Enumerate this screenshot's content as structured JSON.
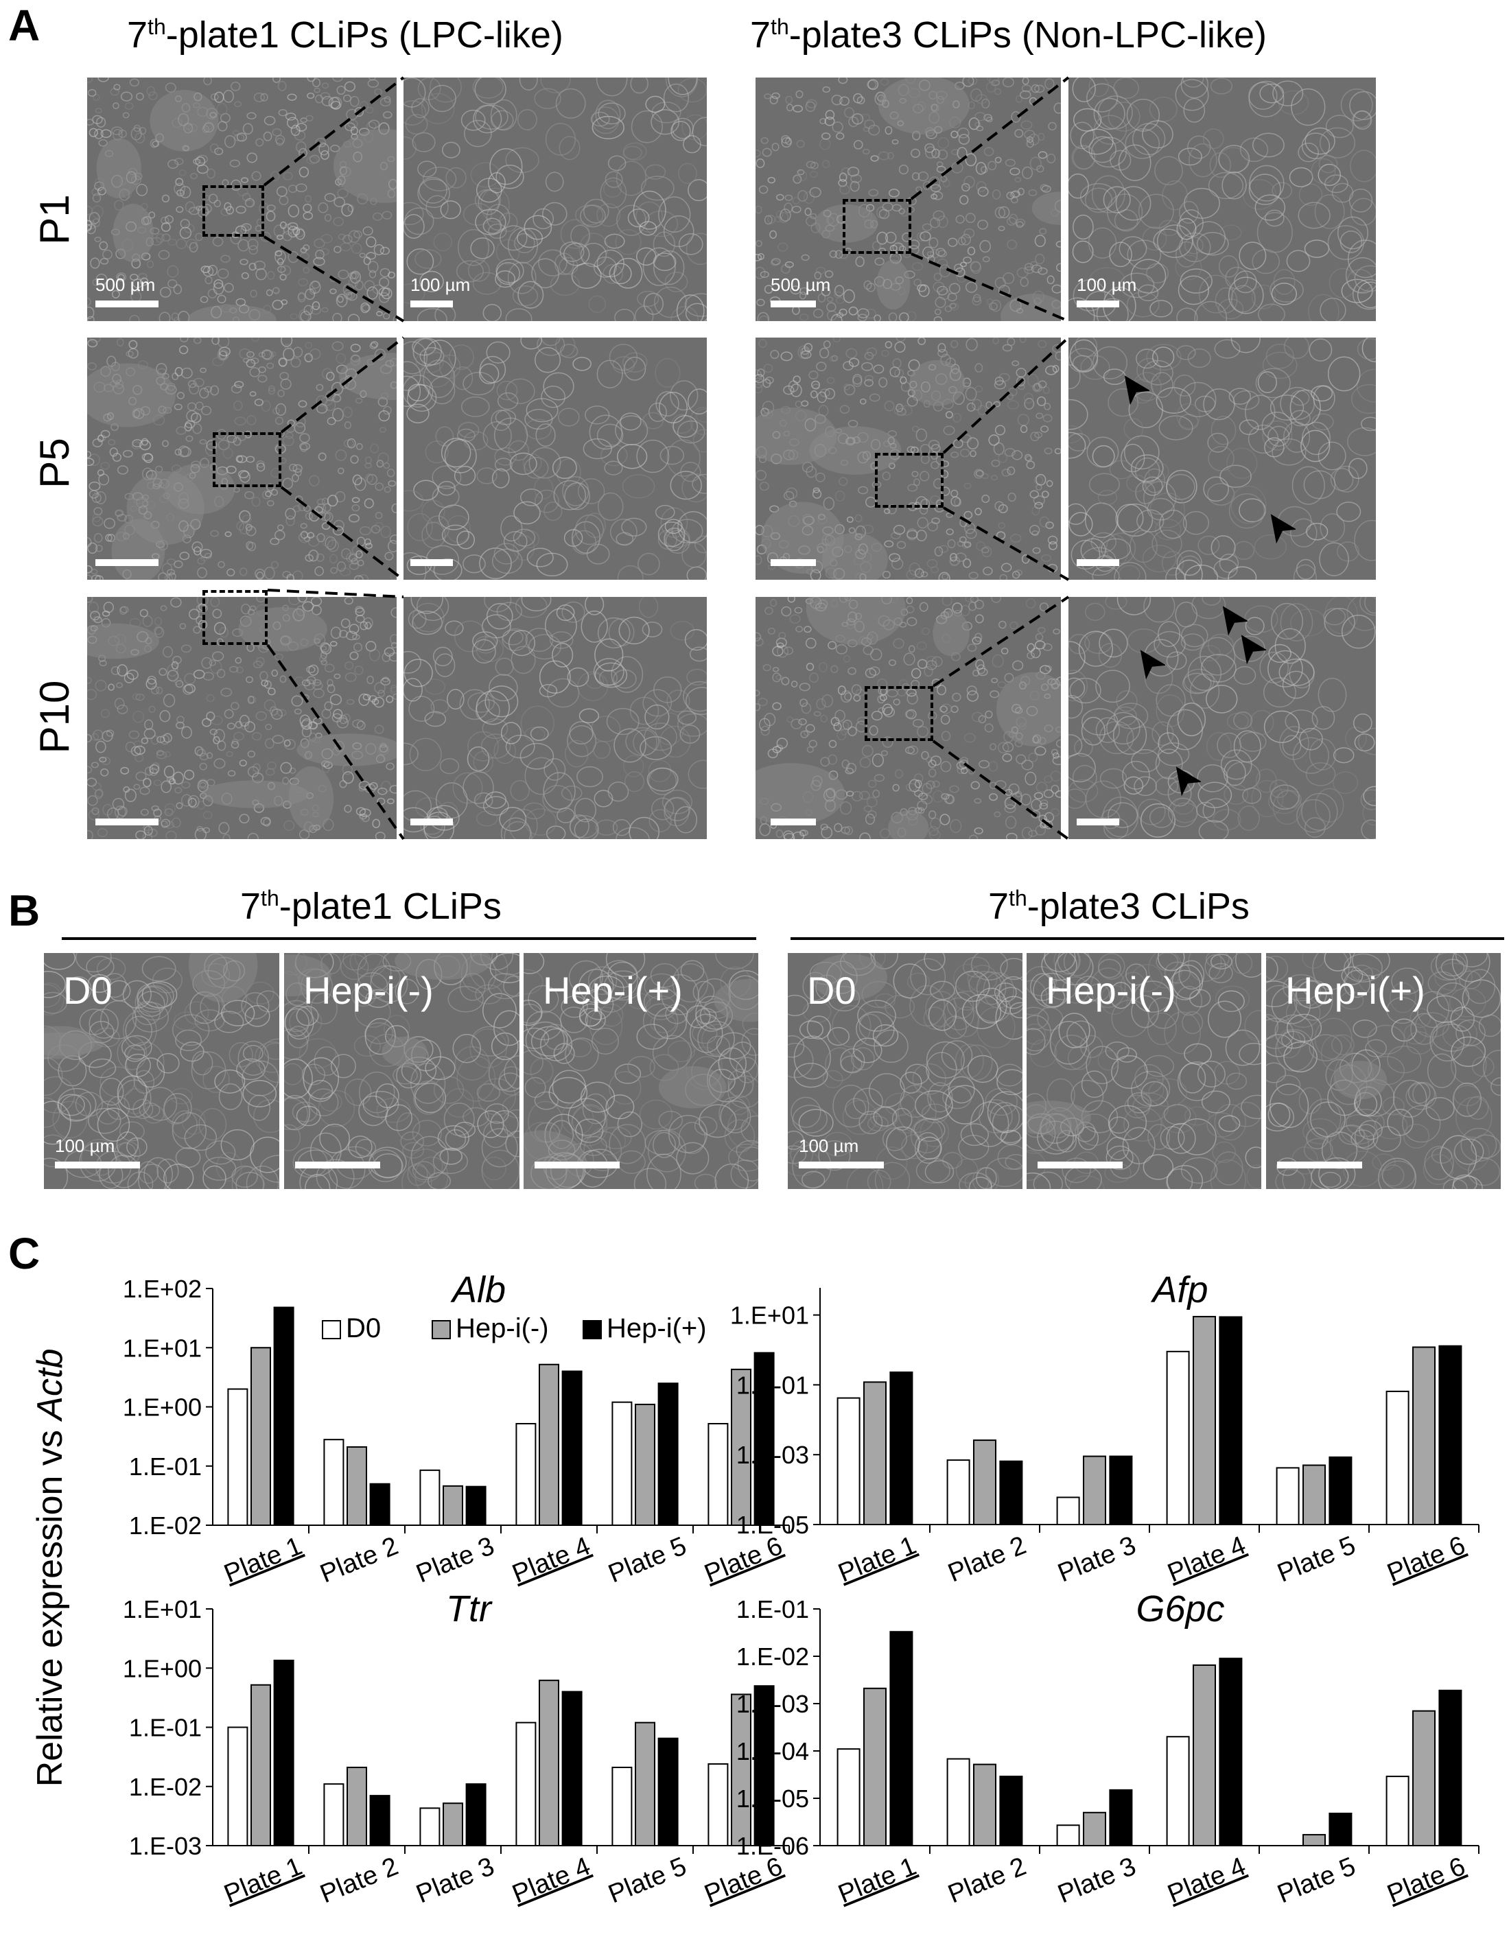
{
  "panel_a": {
    "label": "A",
    "header_left": {
      "pre": "7",
      "sup": "th",
      "post": "-plate1 CLiPs (LPC-like)"
    },
    "header_right": {
      "pre": "7",
      "sup": "th",
      "post": "-plate3 CLiPs (Non-LPC-like)"
    },
    "rows": [
      "P1",
      "P5",
      "P10"
    ],
    "scale_low": "500 µm",
    "scale_high": "100 µm"
  },
  "panel_b": {
    "label": "B",
    "header_left": {
      "pre": "7",
      "sup": "th",
      "post": "-plate1 CLiPs"
    },
    "header_right": {
      "pre": "7",
      "sup": "th",
      "post": "-plate3 CLiPs"
    },
    "conditions": [
      "D0",
      "Hep-i(-)",
      "Hep-i(+)"
    ],
    "scale": "100 µm"
  },
  "panel_c": {
    "label": "C",
    "ylabel_pre": "Relative expression vs ",
    "ylabel_italic": "Actb"
  },
  "colors": {
    "d0": "#ffffff",
    "hep_minus": "#a6a6a6",
    "hep_plus": "#000000",
    "micro_bg": "#6e6e6e"
  },
  "chart_data": [
    {
      "type": "bar",
      "title": "Alb",
      "log_scale": true,
      "ylim": [
        0.01,
        100
      ],
      "yticks": [
        "1.E-02",
        "1.E-01",
        "1.E+00",
        "1.E+01",
        "1.E+02"
      ],
      "categories": [
        "Plate 1",
        "Plate 2",
        "Plate 3",
        "Plate 4",
        "Plate 5",
        "Plate 6"
      ],
      "underlined_categories": [
        "Plate 1",
        "Plate 4",
        "Plate 6"
      ],
      "legend": [
        "D0",
        "Hep-i(-)",
        "Hep-i(+)"
      ],
      "legend_position": "top",
      "series": [
        {
          "name": "D0",
          "values": [
            2.0,
            0.28,
            0.085,
            0.52,
            1.2,
            0.52
          ]
        },
        {
          "name": "Hep-i(-)",
          "values": [
            10.0,
            0.21,
            0.046,
            5.2,
            1.1,
            4.3
          ]
        },
        {
          "name": "Hep-i(+)",
          "values": [
            48.0,
            0.05,
            0.045,
            4.0,
            2.5,
            8.2
          ]
        }
      ]
    },
    {
      "type": "bar",
      "title": "Afp",
      "log_scale": true,
      "ylim": [
        1e-05,
        60
      ],
      "yticks": [
        "1.E-05",
        "1.E-03",
        "1.E-01",
        "1.E+01"
      ],
      "categories": [
        "Plate 1",
        "Plate 2",
        "Plate 3",
        "Plate 4",
        "Plate 5",
        "Plate 6"
      ],
      "underlined_categories": [
        "Plate 1",
        "Plate 4",
        "Plate 6"
      ],
      "series": [
        {
          "name": "D0",
          "values": [
            0.042,
            0.0007,
            6e-05,
            0.9,
            0.00042,
            0.065
          ]
        },
        {
          "name": "Hep-i(-)",
          "values": [
            0.12,
            0.0026,
            0.0009,
            9.0,
            0.0005,
            1.2
          ]
        },
        {
          "name": "Hep-i(+)",
          "values": [
            0.23,
            0.00065,
            0.0009,
            8.8,
            0.00085,
            1.3
          ]
        }
      ]
    },
    {
      "type": "bar",
      "title": "Ttr",
      "log_scale": true,
      "ylim": [
        0.001,
        10
      ],
      "yticks": [
        "1.E-03",
        "1.E-02",
        "1.E-01",
        "1.E+00",
        "1.E+01"
      ],
      "categories": [
        "Plate 1",
        "Plate 2",
        "Plate 3",
        "Plate 4",
        "Plate 5",
        "Plate 6"
      ],
      "underlined_categories": [
        "Plate 1",
        "Plate 4",
        "Plate 6"
      ],
      "series": [
        {
          "name": "D0",
          "values": [
            0.1,
            0.011,
            0.0043,
            0.12,
            0.021,
            0.024
          ]
        },
        {
          "name": "Hep-i(-)",
          "values": [
            0.52,
            0.021,
            0.0052,
            0.62,
            0.12,
            0.36
          ]
        },
        {
          "name": "Hep-i(+)",
          "values": [
            1.35,
            0.007,
            0.011,
            0.4,
            0.065,
            0.5
          ]
        }
      ]
    },
    {
      "type": "bar",
      "title": "G6pc",
      "log_scale": true,
      "ylim": [
        1e-06,
        0.1
      ],
      "yticks": [
        "1.E-06",
        "1.E-05",
        "1.E-04",
        "1.E-03",
        "1.E-02",
        "1.E-01"
      ],
      "categories": [
        "Plate 1",
        "Plate 2",
        "Plate 3",
        "Plate 4",
        "Plate 5",
        "Plate 6"
      ],
      "underlined_categories": [
        "Plate 1",
        "Plate 4",
        "Plate 6"
      ],
      "series": [
        {
          "name": "D0",
          "values": [
            0.00011,
            6.8e-05,
            2.7e-06,
            0.0002,
            null,
            2.9e-05
          ]
        },
        {
          "name": "Hep-i(-)",
          "values": [
            0.0021,
            5.2e-05,
            5e-06,
            0.0065,
            1.7e-06,
            0.0007
          ]
        },
        {
          "name": "Hep-i(+)",
          "values": [
            0.033,
            2.9e-05,
            1.5e-05,
            0.009,
            4.8e-06,
            0.0019
          ]
        }
      ]
    }
  ]
}
